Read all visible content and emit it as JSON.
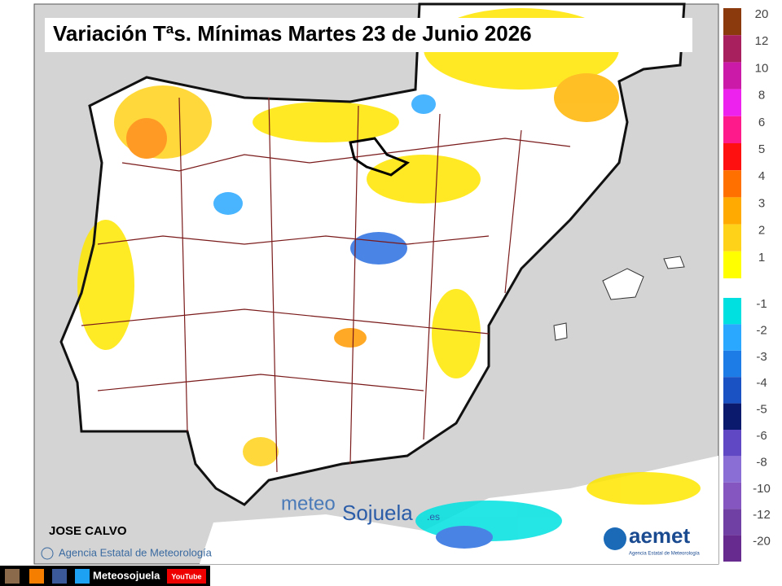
{
  "header": {
    "title": "Variación Tªs. Mínimas Martes 23 de Junio 2026"
  },
  "legend": {
    "positive": [
      {
        "label": "20",
        "color": "#8b3a0e"
      },
      {
        "label": "12",
        "color": "#a8205e"
      },
      {
        "label": "10",
        "color": "#cc1aa8"
      },
      {
        "label": "8",
        "color": "#ee22ee"
      },
      {
        "label": "6",
        "color": "#ff1a8c"
      },
      {
        "label": "5",
        "color": "#ff1010"
      },
      {
        "label": "4",
        "color": "#ff7000"
      },
      {
        "label": "3",
        "color": "#ffaa00"
      },
      {
        "label": "2",
        "color": "#ffd21a"
      },
      {
        "label": "1",
        "color": "#ffff00"
      }
    ],
    "negative": [
      {
        "label": "-1",
        "color": "#00e0e0"
      },
      {
        "label": "-2",
        "color": "#2aa8ff"
      },
      {
        "label": "-3",
        "color": "#1e7ce6"
      },
      {
        "label": "-4",
        "color": "#1a52c4"
      },
      {
        "label": "-5",
        "color": "#0c1a6e"
      },
      {
        "label": "-6",
        "color": "#6048c4"
      },
      {
        "label": "-8",
        "color": "#8a6ed6"
      },
      {
        "label": "-10",
        "color": "#8656c0"
      },
      {
        "label": "-12",
        "color": "#7040a4"
      },
      {
        "label": "-20",
        "color": "#672a8e"
      }
    ]
  },
  "author": "JOSE CALVO",
  "credit": "Agencia Estatal de Meteorología",
  "watermark": {
    "part1": "meteo",
    "part2": "Sojuela",
    "suffix": ".es"
  },
  "logo": {
    "name": "aemet",
    "subtitle": "Agencia Estatal de Meteorología"
  },
  "footer": {
    "handle": "Meteosojuela",
    "youtube": "YouTube"
  }
}
